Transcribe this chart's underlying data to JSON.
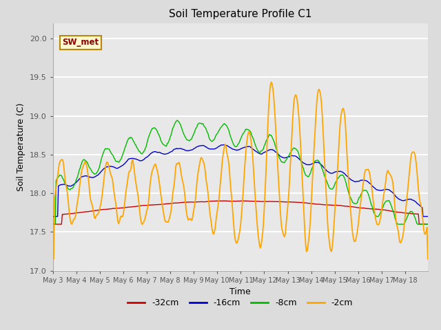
{
  "title": "Soil Temperature Profile C1",
  "xlabel": "Time",
  "ylabel": "Soil Temperature (C)",
  "ylim": [
    17.0,
    20.2
  ],
  "annotation": "SW_met",
  "annotation_color": "#8B0000",
  "annotation_bg": "#FFFACD",
  "annotation_border": "#B8860B",
  "fig_bg": "#DCDCDC",
  "plot_bg": "#E8E8E8",
  "grid_color": "#FFFFFF",
  "color_32cm": "#CC0000",
  "color_16cm": "#0000CC",
  "color_8cm": "#00BB00",
  "color_2cm": "#FFA500",
  "xtick_labels": [
    "May 3",
    "May 4",
    "May 5",
    "May 6",
    "May 7",
    "May 8",
    "May 9",
    "May 10",
    "May 11",
    "May 12",
    "May 13",
    "May 14",
    "May 15",
    "May 16",
    "May 17",
    "May 18"
  ],
  "ytick_values": [
    17.0,
    17.5,
    18.0,
    18.5,
    19.0,
    19.5,
    20.0
  ]
}
